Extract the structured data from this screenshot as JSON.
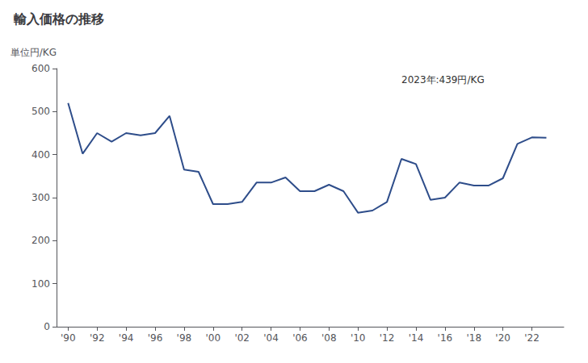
{
  "chart_data": {
    "type": "line",
    "title": "輸入価格の推移",
    "ylabel": "単位円/KG",
    "annotation": "2023年:439円/KG",
    "x": [
      1990,
      1991,
      1992,
      1993,
      1994,
      1995,
      1996,
      1997,
      1998,
      1999,
      2000,
      2001,
      2002,
      2003,
      2004,
      2005,
      2006,
      2007,
      2008,
      2009,
      2010,
      2011,
      2012,
      2013,
      2014,
      2015,
      2016,
      2017,
      2018,
      2019,
      2020,
      2021,
      2022,
      2023
    ],
    "values": [
      520,
      402,
      450,
      430,
      450,
      445,
      450,
      490,
      365,
      360,
      285,
      285,
      290,
      335,
      335,
      347,
      315,
      315,
      330,
      315,
      265,
      270,
      290,
      390,
      378,
      295,
      300,
      335,
      328,
      328,
      345,
      425,
      440,
      439
    ],
    "color": "#2e4d8a",
    "xlim": [
      1989.2,
      2024.2
    ],
    "xticks": [
      {
        "value": 1990,
        "label": "'90"
      },
      {
        "value": 1992,
        "label": "'92"
      },
      {
        "value": 1994,
        "label": "'94"
      },
      {
        "value": 1996,
        "label": "'96"
      },
      {
        "value": 1998,
        "label": "'98"
      },
      {
        "value": 2000,
        "label": "'00"
      },
      {
        "value": 2002,
        "label": "'02"
      },
      {
        "value": 2004,
        "label": "'04"
      },
      {
        "value": 2006,
        "label": "'06"
      },
      {
        "value": 2008,
        "label": "'08"
      },
      {
        "value": 2010,
        "label": "'10"
      },
      {
        "value": 2012,
        "label": "'12"
      },
      {
        "value": 2014,
        "label": "'14"
      },
      {
        "value": 2016,
        "label": "'16"
      },
      {
        "value": 2018,
        "label": "'18"
      },
      {
        "value": 2020,
        "label": "'20"
      },
      {
        "value": 2022,
        "label": "'22"
      }
    ],
    "ylim": [
      0,
      600
    ],
    "yticks": [
      0,
      100,
      200,
      300,
      400,
      500,
      600
    ],
    "grid": false
  }
}
